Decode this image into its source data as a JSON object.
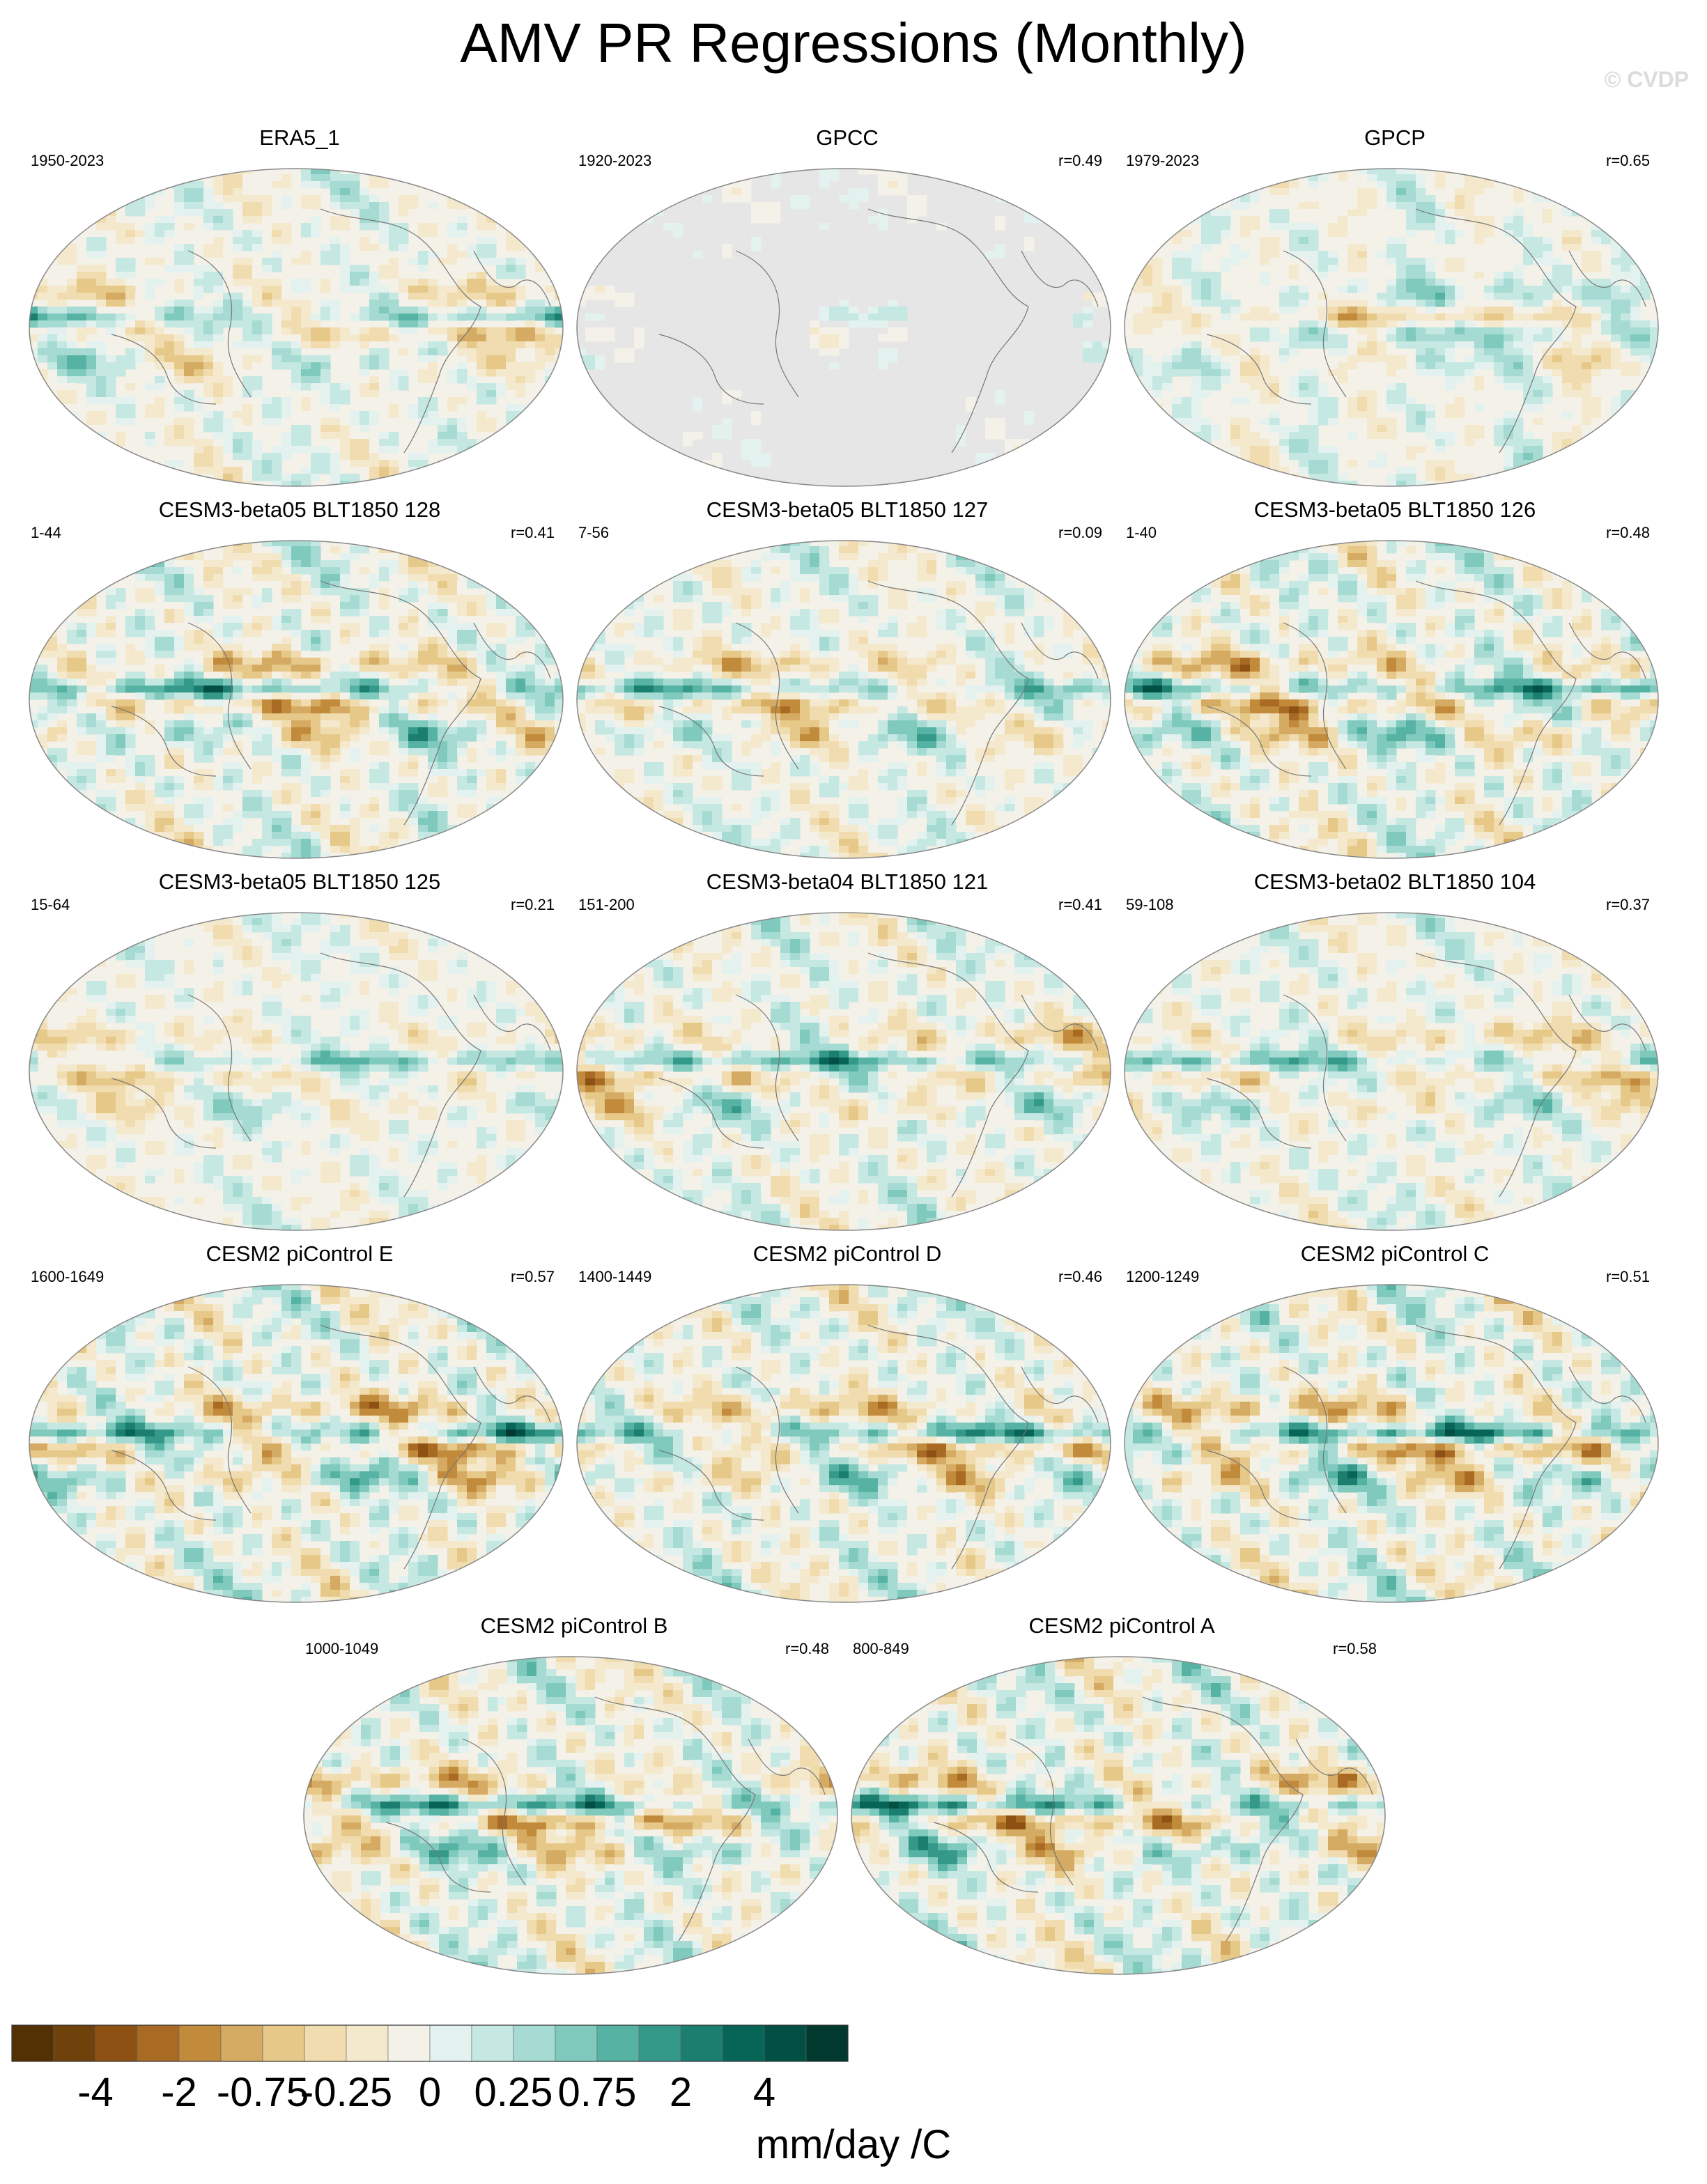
{
  "figure": {
    "title": "AMV PR Regressions (Monthly)",
    "watermark": "© CVDP",
    "units": "mm/day /C"
  },
  "panels": [
    {
      "name": "ERA5_1",
      "period": "1950-2023",
      "corr": "",
      "mask": false,
      "intensity": 0.7,
      "flip": false
    },
    {
      "name": "GPCC",
      "period": "1920-2023",
      "corr": "r=0.49",
      "mask": true,
      "intensity": 0.4,
      "flip": false
    },
    {
      "name": "GPCP",
      "period": "1979-2023",
      "corr": "r=0.65",
      "mask": false,
      "intensity": 0.6,
      "flip": true
    },
    {
      "name": "CESM3-beta05 BLT1850 128",
      "period": "1-44",
      "corr": "r=0.41",
      "mask": false,
      "intensity": 0.9,
      "flip": false
    },
    {
      "name": "CESM3-beta05 BLT1850 127",
      "period": "7-56",
      "corr": "r=0.09",
      "mask": false,
      "intensity": 0.75,
      "flip": false
    },
    {
      "name": "CESM3-beta05 BLT1850 126",
      "period": "1-40",
      "corr": "r=0.48",
      "mask": false,
      "intensity": 0.95,
      "flip": false
    },
    {
      "name": "CESM3-beta05 BLT1850 125",
      "period": "15-64",
      "corr": "r=0.21",
      "mask": false,
      "intensity": 0.6,
      "flip": false
    },
    {
      "name": "CESM3-beta04 BLT1850 121",
      "period": "151-200",
      "corr": "r=0.41",
      "mask": false,
      "intensity": 0.8,
      "flip": false
    },
    {
      "name": "CESM3-beta02 BLT1850 104",
      "period": "59-108",
      "corr": "r=0.37",
      "mask": false,
      "intensity": 0.7,
      "flip": false
    },
    {
      "name": "CESM2 piControl E",
      "period": "1600-1649",
      "corr": "r=0.57",
      "mask": false,
      "intensity": 1.0,
      "flip": false
    },
    {
      "name": "CESM2 piControl D",
      "period": "1400-1449",
      "corr": "r=0.46",
      "mask": false,
      "intensity": 0.9,
      "flip": false
    },
    {
      "name": "CESM2 piControl C",
      "period": "1200-1249",
      "corr": "r=0.51",
      "mask": false,
      "intensity": 1.0,
      "flip": false
    },
    {
      "name": "CESM2 piControl B",
      "period": "1000-1049",
      "corr": "r=0.48",
      "mask": false,
      "intensity": 0.95,
      "flip": false
    },
    {
      "name": "CESM2 piControl A",
      "period": "800-849",
      "corr": "r=0.58",
      "mask": false,
      "intensity": 1.0,
      "flip": false
    }
  ],
  "colorbar": {
    "colors": [
      "#543005",
      "#6f420c",
      "#8c5113",
      "#a96a24",
      "#c28a3b",
      "#d5aa62",
      "#e6c888",
      "#f0dcae",
      "#f5e9cd",
      "#f4f1e9",
      "#e3f1ef",
      "#c5e8e3",
      "#a5dbd2",
      "#7fcabd",
      "#56b3a4",
      "#35998a",
      "#1b7e6f",
      "#076557",
      "#024f43",
      "#01392f"
    ],
    "labels": [
      "-4",
      "-2",
      "-0.75",
      "-0.25",
      "0",
      "0.25",
      "0.75",
      "2",
      "4"
    ]
  }
}
